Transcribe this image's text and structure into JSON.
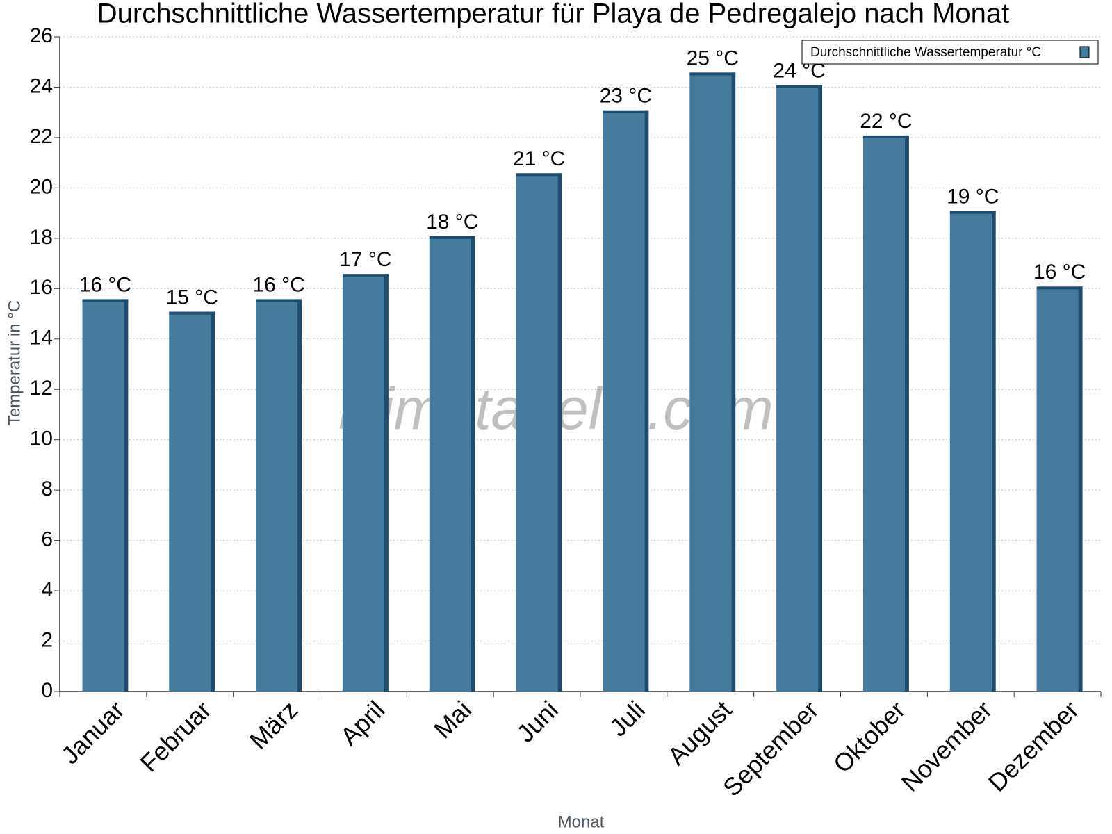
{
  "chart_data": {
    "type": "bar",
    "title": "Durchschnittliche Wassertemperatur für Playa de Pedregalejo nach Monat",
    "x_label": "Monat",
    "y_label": "Temperatur in °C",
    "watermark": "klimatabelle.com",
    "categories": [
      "Januar",
      "Februar",
      "März",
      "April",
      "Mai",
      "Juni",
      "Juli",
      "August",
      "September",
      "Oktober",
      "November",
      "Dezember"
    ],
    "series": [
      {
        "name": "Durchschnittliche Wassertemperatur °C",
        "color": "#457b9d",
        "values": [
          15.5,
          15.0,
          15.5,
          16.5,
          18.0,
          20.5,
          23.0,
          24.5,
          24.0,
          22.0,
          19.0,
          16.0
        ],
        "value_labels": [
          "16 °C",
          "15 °C",
          "16 °C",
          "17 °C",
          "18 °C",
          "21 °C",
          "23 °C",
          "25 °C",
          "24 °C",
          "22 °C",
          "19 °C",
          "16 °C"
        ]
      }
    ],
    "ylim": [
      0,
      26
    ],
    "yticks": [
      0,
      2,
      4,
      6,
      8,
      10,
      12,
      14,
      16,
      18,
      20,
      22,
      24,
      26
    ],
    "grid": true,
    "legend": "top-right"
  }
}
